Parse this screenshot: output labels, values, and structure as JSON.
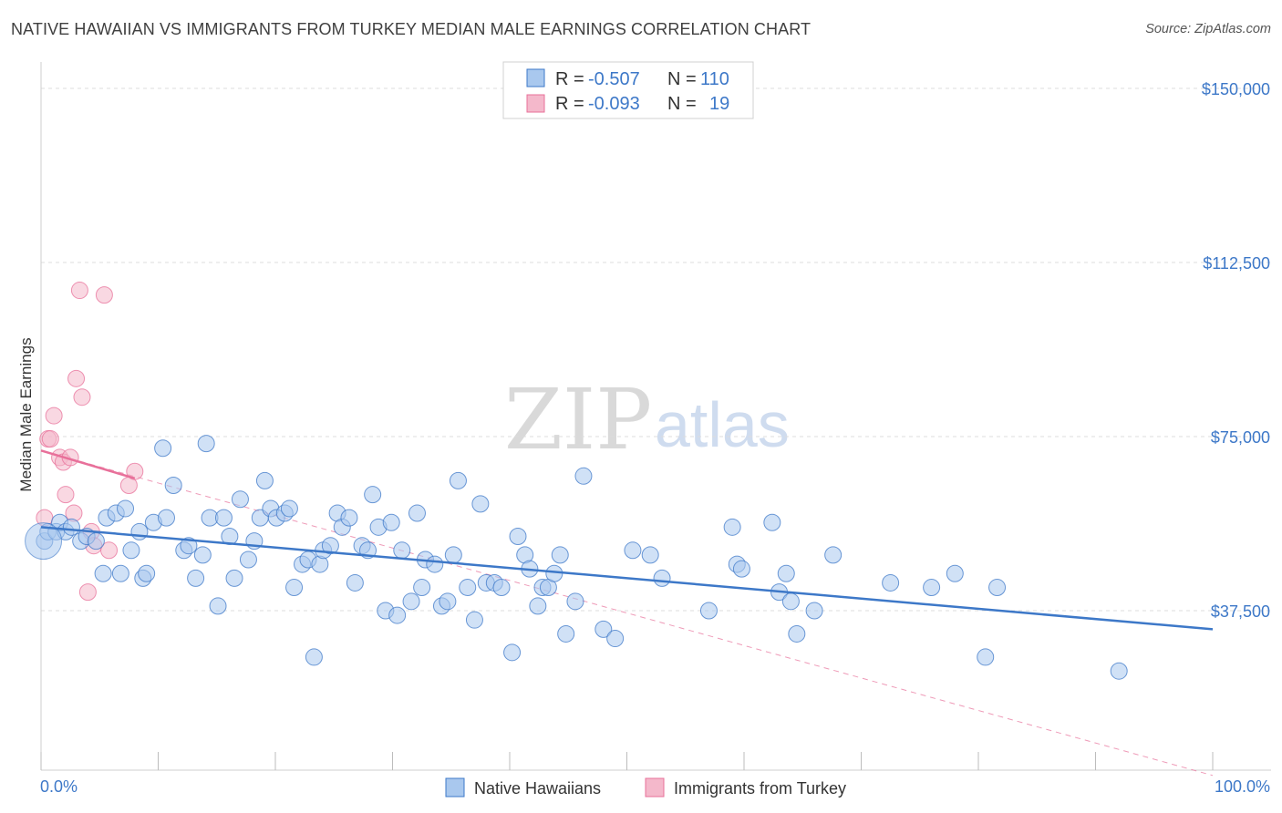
{
  "title": "NATIVE HAWAIIAN VS IMMIGRANTS FROM TURKEY MEDIAN MALE EARNINGS CORRELATION CHART",
  "source": "Source: ZipAtlas.com",
  "watermark": {
    "zip": "ZIP",
    "atlas": "atlas"
  },
  "colors": {
    "blue": "#3d78c8",
    "blue_fill": "#a9c8ee",
    "pink": "#e8709a",
    "pink_fill": "#f4b8cb",
    "grid": "#dcdcdc"
  },
  "legend": {
    "rows": [
      {
        "r_label": "R =",
        "r_value": "-0.507",
        "n_label": "N =",
        "n_value": "110"
      },
      {
        "r_label": "R =",
        "r_value": "-0.093",
        "n_label": "N =",
        "n_value": "19"
      }
    ]
  },
  "bottom_legend": [
    "Native Hawaiians",
    "Immigrants from Turkey"
  ],
  "chart_data": {
    "type": "scatter",
    "title": "NATIVE HAWAIIAN VS IMMIGRANTS FROM TURKEY MEDIAN MALE EARNINGS CORRELATION CHART",
    "xlabel": "",
    "ylabel": "Median Male Earnings",
    "xlim": [
      0,
      100
    ],
    "ylim": [
      0,
      157000
    ],
    "y_ticks": [
      37500,
      75000,
      112500,
      150000
    ],
    "y_tick_labels": [
      "$37,500",
      "$75,000",
      "$112,500",
      "$150,000"
    ],
    "x_tick_labels": [
      "0.0%",
      "100.0%"
    ],
    "series": [
      {
        "name": "Native Hawaiians",
        "trend": {
          "x": [
            0,
            100
          ],
          "y": [
            55500,
            33500
          ]
        },
        "points": [
          [
            0.3,
            52500
          ],
          [
            0.6,
            54500
          ],
          [
            1.3,
            54500
          ],
          [
            1.6,
            56500
          ],
          [
            2.1,
            54500
          ],
          [
            2.6,
            55500
          ],
          [
            3.4,
            52500
          ],
          [
            3.9,
            53500
          ],
          [
            4.7,
            52500
          ],
          [
            5.3,
            45500
          ],
          [
            5.6,
            57500
          ],
          [
            6.4,
            58500
          ],
          [
            6.8,
            45500
          ],
          [
            7.2,
            59500
          ],
          [
            7.7,
            50500
          ],
          [
            8.4,
            54500
          ],
          [
            8.7,
            44500
          ],
          [
            9.0,
            45500
          ],
          [
            9.6,
            56500
          ],
          [
            10.4,
            72500
          ],
          [
            10.7,
            57500
          ],
          [
            11.3,
            64500
          ],
          [
            12.2,
            50500
          ],
          [
            12.6,
            51500
          ],
          [
            13.2,
            44500
          ],
          [
            13.8,
            49500
          ],
          [
            14.1,
            73500
          ],
          [
            14.4,
            57500
          ],
          [
            15.1,
            38500
          ],
          [
            15.6,
            57500
          ],
          [
            16.1,
            53500
          ],
          [
            16.5,
            44500
          ],
          [
            17.0,
            61500
          ],
          [
            17.7,
            48500
          ],
          [
            18.2,
            52500
          ],
          [
            18.7,
            57500
          ],
          [
            19.1,
            65500
          ],
          [
            19.6,
            59500
          ],
          [
            20.1,
            57500
          ],
          [
            20.8,
            58500
          ],
          [
            21.2,
            59500
          ],
          [
            21.6,
            42500
          ],
          [
            22.3,
            47500
          ],
          [
            22.8,
            48500
          ],
          [
            23.3,
            27500
          ],
          [
            23.8,
            47500
          ],
          [
            24.1,
            50500
          ],
          [
            24.7,
            51500
          ],
          [
            25.3,
            58500
          ],
          [
            25.7,
            55500
          ],
          [
            26.3,
            57500
          ],
          [
            26.8,
            43500
          ],
          [
            27.4,
            51500
          ],
          [
            27.9,
            50500
          ],
          [
            28.3,
            62500
          ],
          [
            28.8,
            55500
          ],
          [
            29.4,
            37500
          ],
          [
            29.9,
            56500
          ],
          [
            30.4,
            36500
          ],
          [
            30.8,
            50500
          ],
          [
            31.6,
            39500
          ],
          [
            32.1,
            58500
          ],
          [
            32.5,
            42500
          ],
          [
            32.8,
            48500
          ],
          [
            33.6,
            47500
          ],
          [
            34.2,
            38500
          ],
          [
            34.7,
            39500
          ],
          [
            35.2,
            49500
          ],
          [
            35.6,
            65500
          ],
          [
            36.4,
            42500
          ],
          [
            37.0,
            35500
          ],
          [
            37.5,
            60500
          ],
          [
            38.0,
            43500
          ],
          [
            38.7,
            43500
          ],
          [
            39.3,
            42500
          ],
          [
            40.2,
            28500
          ],
          [
            40.7,
            53500
          ],
          [
            41.3,
            49500
          ],
          [
            41.7,
            46500
          ],
          [
            42.4,
            38500
          ],
          [
            42.8,
            42500
          ],
          [
            43.3,
            42500
          ],
          [
            43.8,
            45500
          ],
          [
            44.3,
            49500
          ],
          [
            44.8,
            32500
          ],
          [
            45.6,
            39500
          ],
          [
            46.3,
            66500
          ],
          [
            48.0,
            33500
          ],
          [
            49.0,
            31500
          ],
          [
            50.5,
            50500
          ],
          [
            52.0,
            49500
          ],
          [
            53.0,
            44500
          ],
          [
            57.0,
            37500
          ],
          [
            59.0,
            55500
          ],
          [
            59.4,
            47500
          ],
          [
            59.8,
            46500
          ],
          [
            62.4,
            56500
          ],
          [
            63.0,
            41500
          ],
          [
            63.6,
            45500
          ],
          [
            64.0,
            39500
          ],
          [
            64.5,
            32500
          ],
          [
            66.0,
            37500
          ],
          [
            67.6,
            49500
          ],
          [
            72.5,
            43500
          ],
          [
            76.0,
            42500
          ],
          [
            78.0,
            45500
          ],
          [
            80.6,
            27500
          ],
          [
            81.6,
            42500
          ],
          [
            92.0,
            24500
          ]
        ]
      },
      {
        "name": "Immigrants from Turkey",
        "trend": {
          "x": [
            0,
            8
          ],
          "y": [
            72000,
            66000
          ]
        },
        "trend_extended": {
          "x": [
            0,
            100
          ],
          "y": [
            72000,
            2000
          ]
        },
        "points": [
          [
            0.3,
            57500
          ],
          [
            0.6,
            74500
          ],
          [
            0.8,
            74500
          ],
          [
            1.1,
            79500
          ],
          [
            1.6,
            70500
          ],
          [
            1.9,
            69500
          ],
          [
            2.1,
            62500
          ],
          [
            2.5,
            70500
          ],
          [
            2.8,
            58500
          ],
          [
            3.0,
            87500
          ],
          [
            3.3,
            106500
          ],
          [
            3.5,
            83500
          ],
          [
            4.0,
            41500
          ],
          [
            4.3,
            54500
          ],
          [
            4.5,
            51500
          ],
          [
            5.4,
            105500
          ],
          [
            5.8,
            50500
          ],
          [
            7.5,
            64500
          ],
          [
            8.0,
            67500
          ]
        ]
      }
    ]
  }
}
